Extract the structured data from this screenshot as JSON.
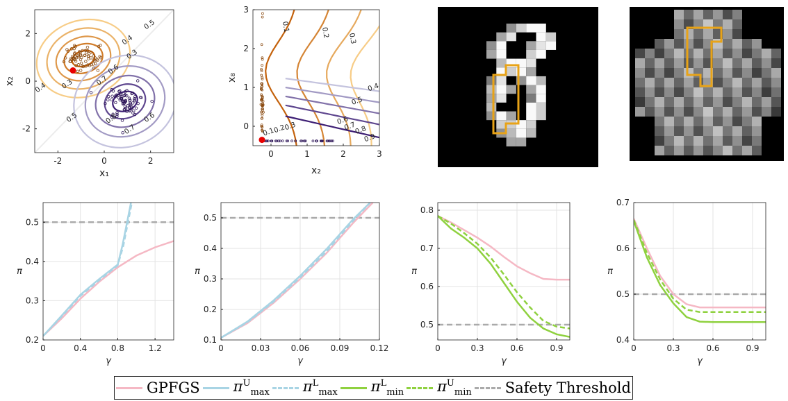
{
  "colors": {
    "gpfgs": "#f5b8c4",
    "pimax": "#a8d4e4",
    "pimin": "#8fd13f",
    "threshold": "#aaaaaa",
    "orange_dark": "#c4620c",
    "orange_light": "#f7cc86",
    "purple_dark": "#3d1e74",
    "purple_light": "#c4c3de",
    "marker": "#e80000"
  },
  "legend": {
    "gpfgs": "GPFGS",
    "pimax_u": "π",
    "pimax_u_sup": "U",
    "pimax_u_sub": "max",
    "pimax_l": "π",
    "pimax_l_sup": "L",
    "pimax_l_sub": "max",
    "pimin_l": "π",
    "pimin_l_sup": "L",
    "pimin_l_sub": "min",
    "pimin_u": "π",
    "pimin_u_sup": "U",
    "pimin_u_sub": "min",
    "threshold": "Safety Threshold"
  },
  "chart_data": [
    {
      "type": "scatter",
      "panel": "contour-2d",
      "xlabel": "x₁",
      "ylabel": "x₂",
      "xlim": [
        -3,
        3
      ],
      "ylim": [
        -3,
        3
      ],
      "xticks": [
        "-2",
        "0",
        "2"
      ],
      "yticks": [
        "-2",
        "0",
        "2"
      ],
      "contour_labels": [
        "0.5",
        "0.4",
        "0.3",
        "0.4",
        "0.3",
        "0.6",
        "0.7",
        "0.6",
        "0.7",
        "0.8",
        "0.5"
      ],
      "cluster_orange_center": [
        -0.9,
        0.95
      ],
      "cluster_purple_center": [
        0.9,
        -0.85
      ],
      "red_point": [
        -1.35,
        0.45
      ]
    },
    {
      "type": "scatter",
      "panel": "contour-x2-x8",
      "xlabel": "x₂",
      "ylabel": "x₈",
      "xlim": [
        -0.5,
        3
      ],
      "ylim": [
        -0.5,
        3
      ],
      "xticks": [
        "0",
        "1",
        "2",
        "3"
      ],
      "yticks": [
        "0",
        "1",
        "2",
        "3"
      ],
      "contour_labels": [
        "0.1",
        "0.2",
        "0.3",
        "0.4",
        "0.5",
        "0.6",
        "0.7",
        "0.8",
        "0.9",
        "0.1",
        "0.2",
        "0.3"
      ],
      "red_point": [
        -0.25,
        -0.35
      ]
    },
    {
      "type": "line",
      "panel": "pi-vs-gamma-1",
      "xlabel": "γ",
      "ylabel": "π",
      "xlim": [
        0,
        1.4
      ],
      "ylim": [
        0.2,
        0.55
      ],
      "xticks": [
        0,
        0.4,
        0.8,
        1.2
      ],
      "yticks": [
        0.2,
        0.3,
        0.4,
        0.5
      ],
      "threshold": 0.5,
      "series": [
        {
          "name": "GPFGS",
          "x": [
            0,
            0.2,
            0.4,
            0.6,
            0.8,
            1.0,
            1.2,
            1.4
          ],
          "y": [
            0.21,
            0.255,
            0.305,
            0.348,
            0.385,
            0.415,
            0.436,
            0.452
          ]
        },
        {
          "name": "π max U",
          "x": [
            0,
            0.2,
            0.4,
            0.6,
            0.8,
            0.85,
            0.9,
            0.95
          ],
          "y": [
            0.21,
            0.262,
            0.315,
            0.355,
            0.392,
            0.44,
            0.5,
            0.56
          ]
        },
        {
          "name": "π max L",
          "x": [
            0,
            0.2,
            0.4,
            0.6,
            0.8,
            0.86,
            0.91,
            0.96
          ],
          "y": [
            0.21,
            0.26,
            0.312,
            0.352,
            0.39,
            0.44,
            0.5,
            0.56
          ]
        }
      ]
    },
    {
      "type": "line",
      "panel": "pi-vs-gamma-2",
      "xlabel": "γ",
      "ylabel": "π",
      "xlim": [
        0,
        0.12
      ],
      "ylim": [
        0.1,
        0.55
      ],
      "xticks": [
        0,
        0.03,
        0.06,
        0.09,
        0.12
      ],
      "yticks": [
        0.1,
        0.2,
        0.3,
        0.4,
        0.5
      ],
      "threshold": 0.5,
      "series": [
        {
          "name": "GPFGS",
          "x": [
            0,
            0.02,
            0.04,
            0.06,
            0.08,
            0.1,
            0.115
          ],
          "y": [
            0.107,
            0.155,
            0.222,
            0.3,
            0.385,
            0.483,
            0.55
          ]
        },
        {
          "name": "π max U",
          "x": [
            0,
            0.02,
            0.04,
            0.06,
            0.08,
            0.1,
            0.113
          ],
          "y": [
            0.107,
            0.16,
            0.23,
            0.31,
            0.398,
            0.495,
            0.55
          ]
        },
        {
          "name": "π max L",
          "x": [
            0,
            0.02,
            0.04,
            0.06,
            0.08,
            0.1,
            0.113
          ],
          "y": [
            0.107,
            0.158,
            0.226,
            0.305,
            0.39,
            0.49,
            0.55
          ]
        }
      ]
    },
    {
      "type": "line",
      "panel": "pi-vs-gamma-3",
      "xlabel": "γ",
      "ylabel": "π",
      "xlim": [
        0,
        1.0
      ],
      "ylim": [
        0.46,
        0.82
      ],
      "xticks": [
        0,
        0.3,
        0.6,
        0.9
      ],
      "yticks": [
        0.5,
        0.6,
        0.7,
        0.8
      ],
      "threshold": 0.5,
      "series": [
        {
          "name": "GPFGS",
          "x": [
            0,
            0.1,
            0.2,
            0.3,
            0.4,
            0.5,
            0.6,
            0.7,
            0.8,
            0.9,
            1.0
          ],
          "y": [
            0.785,
            0.768,
            0.748,
            0.728,
            0.705,
            0.678,
            0.653,
            0.635,
            0.62,
            0.618,
            0.618
          ]
        },
        {
          "name": "π min L",
          "x": [
            0,
            0.1,
            0.2,
            0.3,
            0.4,
            0.5,
            0.6,
            0.7,
            0.8,
            0.9,
            1.0
          ],
          "y": [
            0.785,
            0.752,
            0.728,
            0.7,
            0.66,
            0.61,
            0.56,
            0.518,
            0.49,
            0.475,
            0.468
          ]
        },
        {
          "name": "π min U",
          "x": [
            0,
            0.1,
            0.2,
            0.3,
            0.4,
            0.5,
            0.6,
            0.7,
            0.8,
            0.9,
            1.0
          ],
          "y": [
            0.785,
            0.765,
            0.74,
            0.712,
            0.676,
            0.632,
            0.585,
            0.545,
            0.51,
            0.495,
            0.49
          ]
        }
      ]
    },
    {
      "type": "line",
      "panel": "pi-vs-gamma-4",
      "xlabel": "γ",
      "ylabel": "π",
      "xlim": [
        0,
        1.0
      ],
      "ylim": [
        0.4,
        0.7
      ],
      "xticks": [
        0,
        0.3,
        0.6,
        0.9
      ],
      "yticks": [
        0.4,
        0.5,
        0.6,
        0.7
      ],
      "threshold": 0.5,
      "series": [
        {
          "name": "GPFGS",
          "x": [
            0,
            0.1,
            0.2,
            0.3,
            0.4,
            0.5,
            0.6,
            0.7,
            0.8,
            0.9,
            1.0
          ],
          "y": [
            0.665,
            0.6,
            0.54,
            0.5,
            0.478,
            0.471,
            0.471,
            0.471,
            0.471,
            0.471,
            0.471
          ]
        },
        {
          "name": "π min L",
          "x": [
            0,
            0.1,
            0.2,
            0.3,
            0.4,
            0.5,
            0.6,
            0.7,
            0.8,
            0.9,
            1.0
          ],
          "y": [
            0.66,
            0.58,
            0.52,
            0.48,
            0.45,
            0.44,
            0.439,
            0.439,
            0.439,
            0.439,
            0.439
          ]
        },
        {
          "name": "π min U",
          "x": [
            0,
            0.1,
            0.2,
            0.3,
            0.4,
            0.5,
            0.6,
            0.7,
            0.8,
            0.9,
            1.0
          ],
          "y": [
            0.662,
            0.59,
            0.532,
            0.49,
            0.466,
            0.461,
            0.461,
            0.461,
            0.461,
            0.461,
            0.461
          ]
        }
      ]
    }
  ]
}
